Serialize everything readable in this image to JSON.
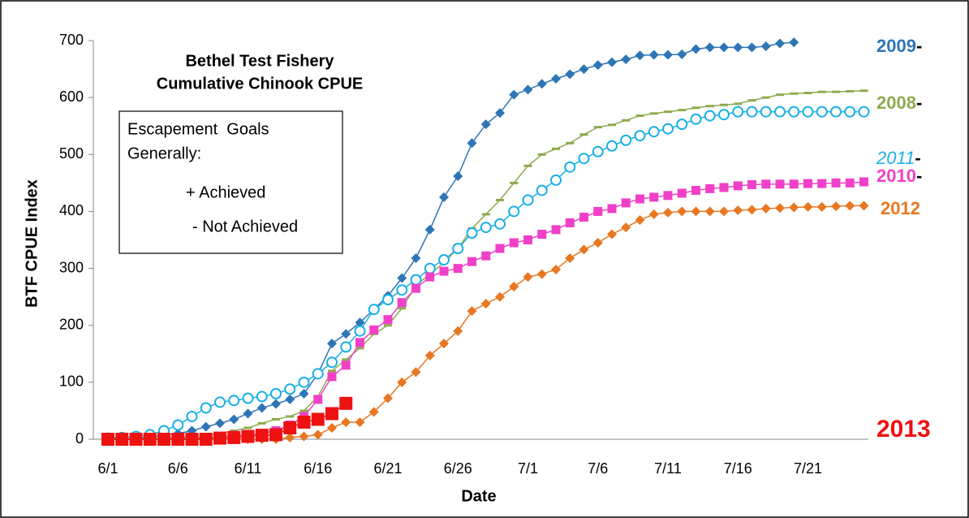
{
  "chart_data": {
    "type": "line",
    "title": [
      "Bethel Test Fishery",
      "Cumulative Chinook CPUE"
    ],
    "annotation": [
      "Escapement  Goals",
      "Generally:",
      "+ Achieved",
      "- Not Achieved"
    ],
    "x_label": "Date",
    "y_label": "BTF CPUE Index",
    "ylim": [
      0,
      700
    ],
    "yticks": [
      0,
      100,
      200,
      300,
      400,
      500,
      600,
      700
    ],
    "grid": false,
    "categories": [
      "6/1",
      null,
      null,
      null,
      null,
      "6/6",
      null,
      null,
      null,
      null,
      "6/11",
      null,
      null,
      null,
      null,
      "6/16",
      null,
      null,
      null,
      null,
      "6/21",
      null,
      null,
      null,
      null,
      "6/26",
      null,
      null,
      null,
      null,
      "7/1",
      null,
      null,
      null,
      null,
      "7/6",
      null,
      null,
      null,
      null,
      "7/11",
      null,
      null,
      null,
      null,
      "7/16",
      null,
      null,
      null,
      null,
      "7/21",
      null,
      null,
      null,
      null
    ],
    "series": [
      {
        "name": "2009",
        "suffix": "-",
        "color": "#2e75b6",
        "marker": "diamond",
        "values": [
          0,
          0,
          2,
          4,
          7,
          10,
          15,
          22,
          28,
          35,
          45,
          55,
          62,
          70,
          80,
          115,
          168,
          185,
          205,
          228,
          252,
          283,
          318,
          368,
          425,
          462,
          520,
          553,
          573,
          605,
          614,
          624,
          633,
          641,
          650,
          657,
          662,
          667,
          674,
          675,
          675,
          676,
          685,
          688,
          688,
          688,
          688,
          690,
          695,
          697,
          null,
          null,
          null,
          null,
          null
        ]
      },
      {
        "name": "2008",
        "suffix": "-",
        "color": "#8faa4e",
        "marker": "dash",
        "values": [
          0,
          0,
          0,
          1,
          2,
          3,
          5,
          7,
          10,
          15,
          20,
          28,
          35,
          40,
          50,
          75,
          120,
          140,
          160,
          185,
          200,
          230,
          270,
          290,
          310,
          335,
          370,
          395,
          420,
          450,
          480,
          500,
          510,
          520,
          535,
          548,
          552,
          560,
          568,
          572,
          575,
          578,
          582,
          585,
          587,
          589,
          595,
          600,
          605,
          607,
          608,
          610,
          610,
          611,
          612
        ]
      },
      {
        "name": "2011",
        "suffix": "-",
        "color": "#1ab0e8",
        "marker": "circle",
        "values": [
          2,
          3,
          5,
          8,
          15,
          25,
          40,
          55,
          65,
          68,
          72,
          75,
          80,
          88,
          100,
          115,
          135,
          162,
          190,
          228,
          245,
          262,
          280,
          300,
          315,
          335,
          362,
          372,
          378,
          400,
          420,
          437,
          455,
          478,
          493,
          505,
          515,
          525,
          533,
          540,
          545,
          553,
          562,
          568,
          570,
          575,
          575,
          575,
          575,
          575,
          575,
          575,
          575,
          575,
          575
        ]
      },
      {
        "name": "2010",
        "suffix": "-",
        "color": "#f040c8",
        "marker": "square",
        "values": [
          0,
          0,
          0,
          0,
          0,
          1,
          2,
          3,
          5,
          7,
          8,
          10,
          15,
          25,
          40,
          70,
          110,
          130,
          170,
          192,
          210,
          240,
          265,
          285,
          295,
          300,
          312,
          322,
          335,
          345,
          350,
          360,
          368,
          380,
          390,
          400,
          405,
          415,
          422,
          425,
          428,
          432,
          437,
          440,
          442,
          445,
          447,
          448,
          448,
          448,
          449,
          449,
          450,
          450,
          452
        ]
      },
      {
        "name": "2012",
        "color": "#e87722",
        "marker": "diamond",
        "values": [
          0,
          0,
          0,
          0,
          0,
          0,
          0,
          0,
          0,
          0,
          0,
          0,
          0,
          3,
          5,
          8,
          20,
          30,
          30,
          48,
          72,
          100,
          118,
          147,
          168,
          190,
          225,
          238,
          250,
          268,
          285,
          290,
          298,
          318,
          333,
          345,
          360,
          372,
          385,
          395,
          398,
          400,
          400,
          400,
          400,
          402,
          403,
          405,
          406,
          407,
          408,
          408,
          409,
          410,
          410
        ]
      },
      {
        "name": "2013",
        "color": "#ee1111",
        "marker": "bigsquare",
        "values": [
          0,
          0,
          0,
          0,
          0,
          0,
          0,
          0,
          2,
          3,
          5,
          7,
          8,
          20,
          30,
          35,
          45,
          63,
          null,
          null,
          null,
          null,
          null,
          null,
          null,
          null,
          null,
          null,
          null,
          null,
          null,
          null,
          null,
          null,
          null,
          null,
          null,
          null,
          null,
          null,
          null,
          null,
          null,
          null,
          null,
          null,
          null,
          null,
          null,
          null,
          null,
          null,
          null,
          null,
          null
        ]
      }
    ]
  }
}
